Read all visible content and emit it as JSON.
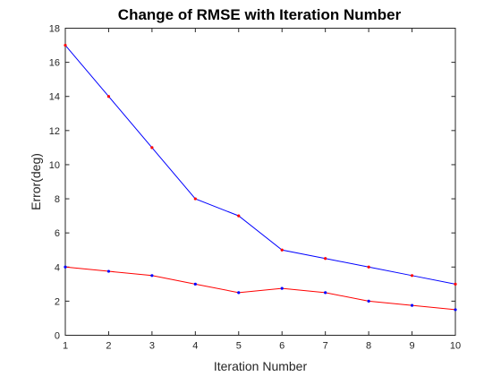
{
  "chart_data": {
    "type": "line",
    "title": "Change of RMSE with Iteration Number",
    "xlabel": "Iteration Number",
    "ylabel": "Error(deg)",
    "xlim": [
      1,
      10
    ],
    "ylim": [
      0,
      18
    ],
    "x_ticks": [
      1,
      2,
      3,
      4,
      5,
      6,
      7,
      8,
      9,
      10
    ],
    "y_ticks": [
      0,
      2,
      4,
      6,
      8,
      10,
      12,
      14,
      16,
      18
    ],
    "grid": false,
    "legend": "none",
    "x": [
      1,
      2,
      3,
      4,
      5,
      6,
      7,
      8,
      9,
      10
    ],
    "series": [
      {
        "values": [
          17,
          14,
          11,
          8,
          7,
          5,
          4.5,
          4,
          3.5,
          3
        ],
        "line_color": "#0000ff",
        "marker_color": "#ff0000"
      },
      {
        "values": [
          4,
          3.75,
          3.5,
          3,
          2.5,
          2.75,
          2.5,
          2,
          1.75,
          1.5
        ],
        "line_color": "#ff0000",
        "marker_color": "#0000ff"
      }
    ]
  }
}
